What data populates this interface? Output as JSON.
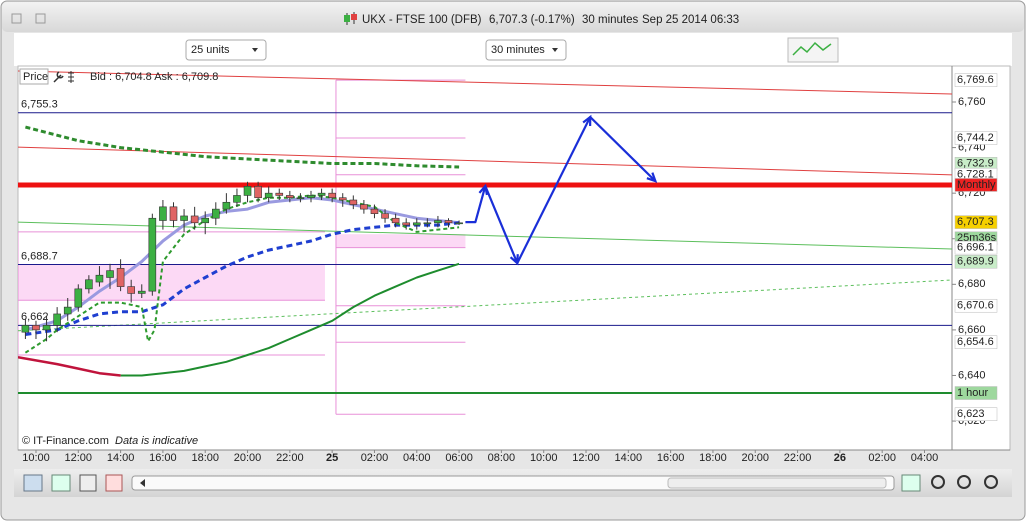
{
  "window": {
    "symbol": "UKX - FTSE 100 (DFB)",
    "quote": "6,707.3 (-0.17%)",
    "interval": "30 minutes",
    "datetime": "Sep 25 2014 06:33"
  },
  "toolbar": {
    "units": "25 units",
    "period": "30 minutes"
  },
  "legend": {
    "price": "Price",
    "bid_ask": "Bid : 6,704.8 Ask : 6,709.8"
  },
  "footer": {
    "copyright": "© IT-Finance.com",
    "note": "Data is indicative"
  },
  "chart_data": {
    "type": "candlestick",
    "up_color": "#3cb043",
    "down_color": "#e06464",
    "xlim": [
      9.15,
      53.3
    ],
    "ylim": [
      6607.3,
      6775.8
    ],
    "xticks": [
      {
        "value": 10,
        "label": "10:00"
      },
      {
        "value": 12,
        "label": "12:00"
      },
      {
        "value": 14,
        "label": "14:00"
      },
      {
        "value": 16,
        "label": "16:00"
      },
      {
        "value": 18,
        "label": "18:00"
      },
      {
        "value": 20,
        "label": "20:00"
      },
      {
        "value": 22,
        "label": "22:00"
      },
      {
        "value": 24,
        "label": "25"
      },
      {
        "value": 26,
        "label": "02:00"
      },
      {
        "value": 28,
        "label": "04:00"
      },
      {
        "value": 30,
        "label": "06:00"
      },
      {
        "value": 32,
        "label": "08:00"
      },
      {
        "value": 34,
        "label": "10:00"
      },
      {
        "value": 36,
        "label": "12:00"
      },
      {
        "value": 38,
        "label": "14:00"
      },
      {
        "value": 40,
        "label": "16:00"
      },
      {
        "value": 42,
        "label": "18:00"
      },
      {
        "value": 44,
        "label": "20:00"
      },
      {
        "value": 46,
        "label": "22:00"
      },
      {
        "value": 48,
        "label": "26"
      },
      {
        "value": 50,
        "label": "02:00"
      },
      {
        "value": 52,
        "label": "04:00"
      }
    ],
    "yticks": [
      {
        "value": 6620,
        "label": "6,620"
      },
      {
        "value": 6640,
        "label": "6,640"
      },
      {
        "value": 6660,
        "label": "6,660"
      },
      {
        "value": 6680,
        "label": "6,680"
      },
      {
        "value": 6700,
        "label": "6,700"
      },
      {
        "value": 6720,
        "label": "6,720"
      },
      {
        "value": 6740,
        "label": "6,740"
      },
      {
        "value": 6760,
        "label": "6,760"
      }
    ],
    "x": [
      9.5,
      10,
      10.5,
      11,
      11.5,
      12,
      12.5,
      13,
      13.5,
      14,
      14.5,
      15,
      15.5,
      16,
      16.5,
      17,
      17.5,
      18,
      18.5,
      19,
      19.5,
      20,
      20.5,
      21,
      21.5,
      22,
      22.5,
      23,
      23.5,
      24,
      24.5,
      25,
      25.5,
      26,
      26.5,
      27,
      27.5,
      28,
      28.5,
      29,
      29.5,
      30
    ],
    "open": [
      6659,
      6662,
      6660,
      6662,
      6667,
      6670,
      6678,
      6681,
      6683,
      6687,
      6679,
      6676,
      6677,
      6708,
      6714,
      6708,
      6710,
      6707,
      6709,
      6713,
      6716,
      6719,
      6723,
      6718,
      6720,
      6719,
      6718,
      6718,
      6719,
      6720,
      6718,
      6717,
      6715,
      6713,
      6711,
      6709,
      6707,
      6706,
      6707,
      6707,
      6708,
      6707
    ],
    "high": [
      6665,
      6664,
      6666,
      6670,
      6674,
      6680,
      6684,
      6688,
      6689,
      6691,
      6682,
      6680,
      6711,
      6717,
      6716,
      6713,
      6714,
      6712,
      6716,
      6720,
      6722,
      6725,
      6725,
      6723,
      6722,
      6721,
      6720,
      6721,
      6722,
      6722,
      6720,
      6719,
      6717,
      6715,
      6713,
      6711,
      6709,
      6709,
      6709,
      6710,
      6709,
      6708
    ],
    "low": [
      6656,
      6656,
      6655,
      6659,
      6664,
      6668,
      6676,
      6679,
      6678,
      6677,
      6672,
      6674,
      6675,
      6704,
      6705,
      6703,
      6704,
      6702,
      6706,
      6711,
      6714,
      6716,
      6716,
      6716,
      6717,
      6716,
      6716,
      6716,
      6717,
      6716,
      6714,
      6713,
      6711,
      6709,
      6707,
      6705,
      6704,
      6704,
      6705,
      6705,
      6705,
      6706
    ],
    "close": [
      6662,
      6660,
      6662,
      6667,
      6670,
      6678,
      6682,
      6684,
      6686,
      6679,
      6676,
      6677,
      6709,
      6714,
      6708,
      6710,
      6707,
      6709,
      6713,
      6716,
      6719,
      6723,
      6718,
      6720,
      6719,
      6718,
      6718,
      6719,
      6720,
      6718,
      6717,
      6715,
      6713,
      6711,
      6709,
      6707,
      6706,
      6707,
      6707,
      6708,
      6707,
      6707
    ],
    "lines": [
      {
        "color": "#9a9ae0",
        "width": 3,
        "dash": "",
        "x": [
          9.5,
          11,
          12,
          13,
          14,
          15,
          16,
          17,
          18,
          19,
          20,
          21,
          22,
          23,
          24,
          25,
          26,
          27,
          28,
          29,
          30
        ],
        "values": [
          6660,
          6664,
          6670,
          6677,
          6683,
          6690,
          6699,
          6706,
          6710,
          6712,
          6713,
          6716,
          6717,
          6718,
          6717,
          6715,
          6713,
          6711,
          6709,
          6708,
          6707
        ]
      },
      {
        "color": "#1f3fd0",
        "width": 3,
        "dash": "6 4",
        "x": [
          9.5,
          11,
          12,
          13,
          14,
          15,
          16,
          17,
          18,
          19,
          20,
          21,
          22,
          23,
          24,
          25,
          26,
          27,
          28,
          29,
          30
        ],
        "values": [
          6658,
          6660,
          6664,
          6667,
          6668,
          6668,
          6671,
          6678,
          6683,
          6688,
          6692,
          6695,
          6697,
          6699,
          6702,
          6704,
          6705,
          6706,
          6706,
          6706,
          6707
        ]
      },
      {
        "color": "#2e9a2e",
        "width": 2,
        "dash": "4 3",
        "x": [
          9.5,
          10.5,
          11,
          12,
          13,
          14,
          15,
          15.3,
          15.6,
          16,
          17,
          18,
          19,
          20,
          21,
          22,
          23,
          24,
          25,
          26,
          27,
          28,
          29,
          30
        ],
        "values": [
          6650,
          6656,
          6660,
          6666,
          6672,
          6672,
          6670,
          6655,
          6660,
          6690,
          6702,
          6708,
          6713,
          6716,
          6718,
          6718,
          6719,
          6718,
          6716,
          6714,
          6707,
          6703,
          6704,
          6705
        ]
      },
      {
        "color": "#1e8c2e",
        "width": 2,
        "dash": "",
        "x": [
          14,
          15,
          16,
          17,
          18,
          19,
          20,
          21,
          22,
          23,
          24,
          25,
          26,
          27,
          28,
          29,
          30
        ],
        "values": [
          6640,
          6640,
          6641,
          6642,
          6644,
          6646,
          6649,
          6652,
          6656,
          6660,
          6664,
          6670,
          6675,
          6679,
          6683,
          6686,
          6689
        ]
      },
      {
        "color": "#c0143c",
        "width": 2.5,
        "dash": "",
        "x": [
          9.15,
          11,
          12,
          13,
          14
        ],
        "values": [
          6648,
          6645,
          6643,
          6641,
          6640
        ]
      },
      {
        "color": "#2e8b2e",
        "width": 3,
        "dash": "5 3",
        "x": [
          9.5,
          12,
          14,
          16,
          18,
          20,
          22,
          24,
          26,
          28,
          30
        ],
        "values": [
          6749,
          6743,
          6740,
          6738,
          6736,
          6735,
          6734,
          6733,
          6733,
          6732,
          6731.5
        ]
      }
    ],
    "trendlines": [
      {
        "color": "#e04040",
        "width": 1,
        "dash": "",
        "x": [
          9.15,
          53.3
        ],
        "values": [
          6773.6,
          6763.5
        ]
      },
      {
        "color": "#e04040",
        "width": 1,
        "dash": "",
        "x": [
          9.15,
          53.3
        ],
        "values": [
          6740.2,
          6728
        ]
      },
      {
        "color": "#5cbf5c",
        "width": 1,
        "dash": "",
        "x": [
          9.15,
          53.3
        ],
        "values": [
          6707.3,
          6695.5
        ]
      },
      {
        "color": "#5cbf5c",
        "width": 1,
        "dash": "3 3",
        "x": [
          9.15,
          53.3
        ],
        "values": [
          6659.6,
          6681.9
        ]
      }
    ],
    "levels": [
      {
        "value": 6755.3,
        "label": "6,755.3",
        "color": "#1a1a8c",
        "width": 1
      },
      {
        "value": 6688.7,
        "label": "6,688.7",
        "color": "#1a1a8c",
        "width": 1
      },
      {
        "value": 6662,
        "label": "6,662",
        "color": "#1a1a8c",
        "width": 1
      },
      {
        "value": 6723.6,
        "color": "#ee1111",
        "width": 5
      },
      {
        "value": 6632.3,
        "color": "#1e8c2e",
        "width": 2
      }
    ],
    "pivots": [
      {
        "x": [
          9.15,
          23.66
        ],
        "band": [
          6673,
          6688.7
        ],
        "levels": [
          6703,
          6688.7,
          6673,
          6649
        ]
      },
      {
        "x": [
          24.18,
          30.3
        ],
        "band": [
          6696.1,
          6702
        ],
        "levels": [
          6769.6,
          6744.2,
          6728.1,
          6696.1,
          6670.6,
          6654.6,
          6623
        ]
      }
    ],
    "pivot_color": "#e890d8",
    "band_color": "#fbd0f2",
    "forecast": {
      "color": "#1a2fd8",
      "x": [
        30.3,
        30.77,
        31.24,
        32.75,
        36.2,
        39.28
      ],
      "values": [
        6707.3,
        6707.3,
        6723.1,
        6689.3,
        6753.4,
        6725.3
      ]
    },
    "price_tags": [
      {
        "value": 6769.6,
        "label": "6,769.6",
        "color": "#e07ad0",
        "background": "#ffffff"
      },
      {
        "value": 6744.2,
        "label": "6,744.2",
        "color": "#e07ad0",
        "background": "#ffffff"
      },
      {
        "value": 6732.9,
        "label": "6,732.9",
        "color": "#1a5a1a",
        "background": "#c8ecc8"
      },
      {
        "value": 6728.1,
        "label": "6,728.1",
        "color": "#e07ad0",
        "background": "#ffffff"
      },
      {
        "value": 6723.6,
        "label": "Monthly",
        "color": "#222222",
        "background": "#ee2222"
      },
      {
        "value": 6707.3,
        "label": "6,707.3",
        "color": "#222222",
        "background": "#f6d000"
      },
      {
        "value": 6700.2,
        "label": "25m36s",
        "color": "#1a4a1a",
        "background": "#9ed89e"
      },
      {
        "value": 6696.1,
        "label": "6,696.1",
        "color": "#e07ad0",
        "background": "#ffffff"
      },
      {
        "value": 6689.9,
        "label": "6,689.9",
        "color": "#1a5a1a",
        "background": "#c8ecc8"
      },
      {
        "value": 6670.6,
        "label": "6,670.6",
        "color": "#e07ad0",
        "background": "#ffffff"
      },
      {
        "value": 6654.6,
        "label": "6,654.6",
        "color": "#e07ad0",
        "background": "#ffffff"
      },
      {
        "value": 6623,
        "label": "6,623",
        "color": "#e07ad0",
        "background": "#ffffff"
      },
      {
        "value": 6632.3,
        "label": "1 hour",
        "color": "#1a4a1a",
        "background": "#9ed89e"
      }
    ]
  }
}
